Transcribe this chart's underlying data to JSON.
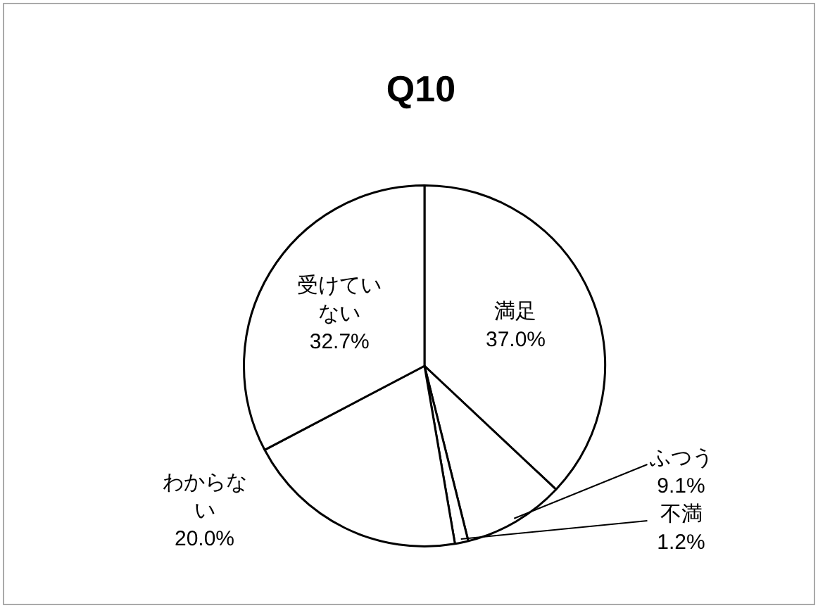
{
  "chart_data": {
    "type": "pie",
    "title": "Q10",
    "categories": [
      "満足",
      "ふつう",
      "不満",
      "わからない",
      "受けていない"
    ],
    "values": [
      37.0,
      9.1,
      1.2,
      20.0,
      32.7
    ],
    "colors": [
      "#ffffff",
      "#ffffff",
      "#ffffff",
      "#ffffff",
      "#ffffff"
    ],
    "value_labels": [
      "37.0%",
      "9.1%",
      "1.2%",
      "20.0%",
      "32.7%"
    ],
    "legend": false
  }
}
